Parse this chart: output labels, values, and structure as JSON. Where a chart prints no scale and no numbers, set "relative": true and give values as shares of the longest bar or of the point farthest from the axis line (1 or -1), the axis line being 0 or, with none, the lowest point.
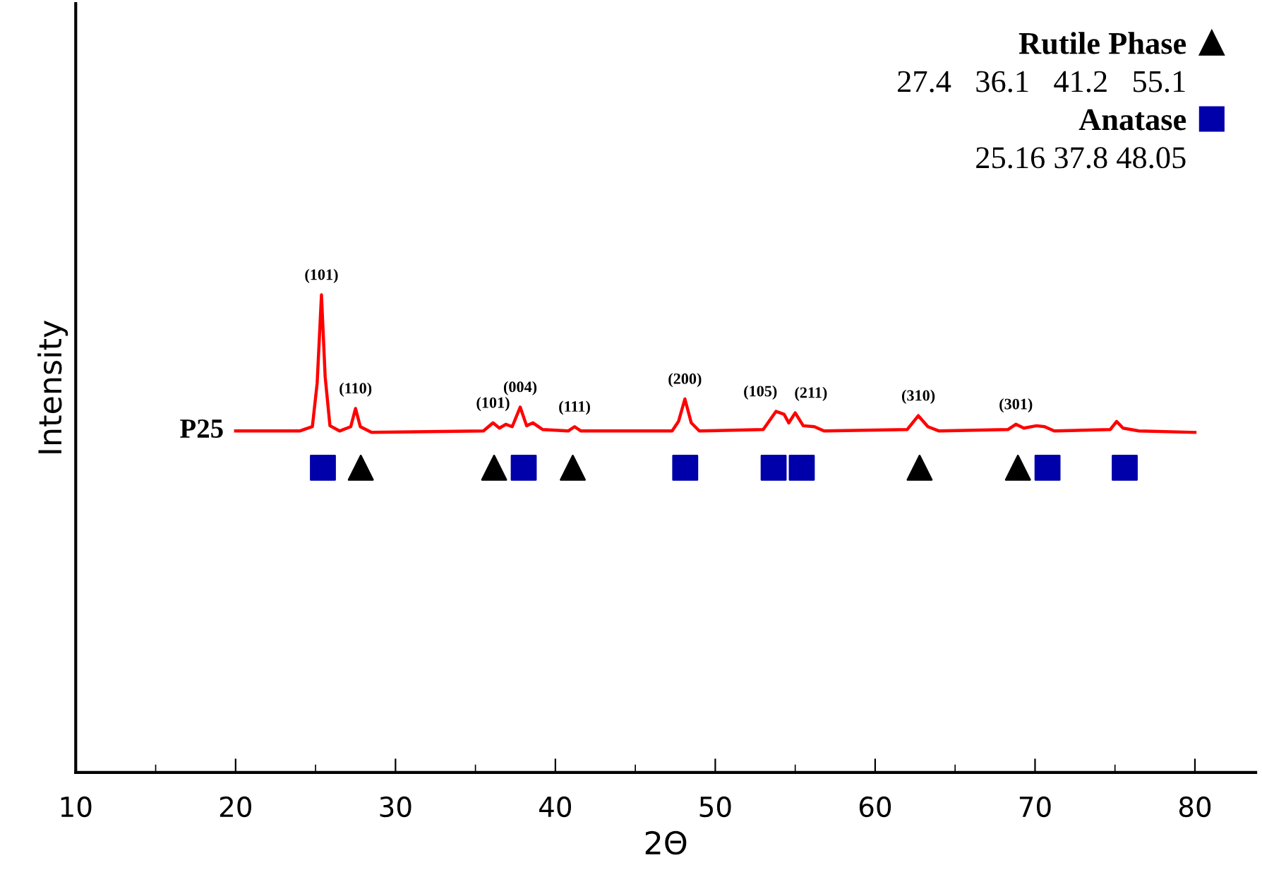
{
  "chart_data": {
    "type": "line",
    "relative": true,
    "xlabel": "2Θ",
    "ylabel": "Intensity",
    "xlim": [
      10,
      83.8
    ],
    "xticks": [
      10,
      20,
      30,
      40,
      50,
      60,
      70,
      80
    ],
    "grid": false,
    "legend": "top right",
    "series": [
      {
        "name": "P25",
        "color": "#ff0000",
        "marker": "none",
        "line_style": "solid",
        "x": [
          20.0,
          24.0,
          24.8,
          25.1,
          25.37,
          25.6,
          25.9,
          26.5,
          27.2,
          27.5,
          27.8,
          28.5,
          35.5,
          36.1,
          36.5,
          36.9,
          37.3,
          37.8,
          38.2,
          38.6,
          39.2,
          40.8,
          41.2,
          41.6,
          47.3,
          47.7,
          48.1,
          48.5,
          49.0,
          53.0,
          53.8,
          54.3,
          54.6,
          55.0,
          55.5,
          56.2,
          56.8,
          62.0,
          62.7,
          63.3,
          64.0,
          68.3,
          68.8,
          69.3,
          70.1,
          70.6,
          71.2,
          74.7,
          75.1,
          75.5,
          76.5,
          80.0
        ],
        "values": [
          0.715,
          0.715,
          0.724,
          0.815,
          1.0,
          0.829,
          0.726,
          0.715,
          0.724,
          0.762,
          0.724,
          0.712,
          0.715,
          0.732,
          0.721,
          0.729,
          0.724,
          0.765,
          0.726,
          0.732,
          0.718,
          0.715,
          0.724,
          0.715,
          0.715,
          0.735,
          0.782,
          0.732,
          0.715,
          0.718,
          0.756,
          0.75,
          0.732,
          0.753,
          0.726,
          0.724,
          0.715,
          0.718,
          0.747,
          0.724,
          0.715,
          0.718,
          0.729,
          0.721,
          0.726,
          0.724,
          0.715,
          0.718,
          0.735,
          0.721,
          0.715,
          0.712
        ]
      },
      {
        "name": "Rutile Phase",
        "type": "scatter",
        "color": "#000000",
        "marker": "triangle",
        "x": [
          27.83,
          36.17,
          41.09,
          62.78,
          68.93
        ],
        "values": [
          0.638,
          0.638,
          0.638,
          0.638,
          0.638
        ]
      },
      {
        "name": "Anatase",
        "type": "scatter",
        "color": "#0000aa",
        "marker": "square",
        "x": [
          25.46,
          38.02,
          48.12,
          53.65,
          55.41,
          70.78,
          75.61
        ],
        "values": [
          0.638,
          0.638,
          0.638,
          0.638,
          0.638,
          0.638,
          0.638
        ]
      }
    ],
    "annotations": [
      "27.4   36.1   41.2   55.1",
      "25.16 37.8 48.05",
      {
        "text": "(101)",
        "x": 25.37,
        "y": 1.0
      },
      {
        "text": "(110)",
        "x": 27.5,
        "y": 0.762
      },
      {
        "text": "(101)",
        "x": 36.1,
        "y": 0.732
      },
      {
        "text": "(004)",
        "x": 37.8,
        "y": 0.765
      },
      {
        "text": "(111)",
        "x": 41.2,
        "y": 0.724
      },
      {
        "text": "(200)",
        "x": 48.1,
        "y": 0.782
      },
      {
        "text": "(105)",
        "x": 53.8,
        "y": 0.756
      },
      {
        "text": "(211)",
        "x": 55.0,
        "y": 0.753
      },
      {
        "text": "(310)",
        "x": 62.7,
        "y": 0.747
      },
      {
        "text": "(301)",
        "x": 68.8,
        "y": 0.729
      }
    ]
  }
}
